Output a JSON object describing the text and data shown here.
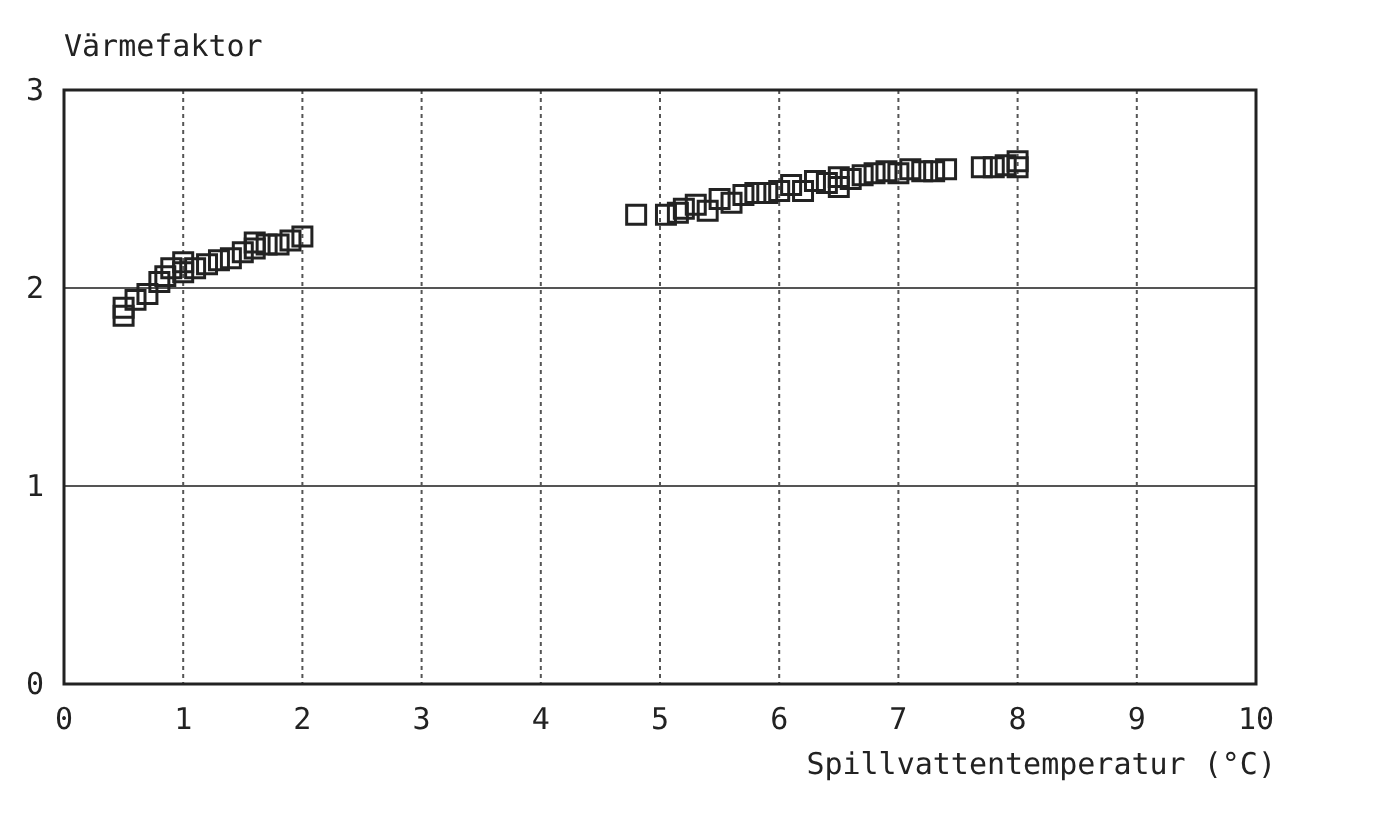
{
  "chart_data": {
    "type": "scatter",
    "ylabel": "Värmefaktor",
    "xlabel": "Spillvattentemperatur (°C)",
    "xlim": [
      0,
      10
    ],
    "xticks": [
      0,
      1,
      2,
      3,
      4,
      5,
      6,
      7,
      8,
      9,
      10
    ],
    "ylim": [
      0,
      3
    ],
    "yticks": [
      0,
      1,
      2,
      3
    ],
    "grid": true,
    "marker": "square",
    "series": [
      {
        "color": "#222222",
        "x": [
          0.5,
          0.5,
          0.6,
          0.7,
          0.8,
          0.85,
          0.9,
          1.0,
          1.0,
          1.1,
          1.2,
          1.3,
          1.4,
          1.5,
          1.6,
          1.6,
          1.7,
          1.8,
          1.9,
          2.0,
          4.8,
          5.05,
          5.15,
          5.2,
          5.3,
          5.4,
          5.5,
          5.6,
          5.7,
          5.8,
          5.9,
          6.0,
          6.1,
          6.2,
          6.3,
          6.4,
          6.5,
          6.5,
          6.6,
          6.7,
          6.8,
          6.9,
          7.0,
          7.1,
          7.2,
          7.3,
          7.4,
          7.7,
          7.8,
          7.9,
          8.0,
          8.0
        ],
        "values": [
          1.86,
          1.9,
          1.94,
          1.97,
          2.03,
          2.06,
          2.1,
          2.08,
          2.13,
          2.1,
          2.12,
          2.14,
          2.15,
          2.18,
          2.2,
          2.23,
          2.22,
          2.22,
          2.24,
          2.26,
          2.37,
          2.37,
          2.38,
          2.4,
          2.42,
          2.39,
          2.45,
          2.43,
          2.47,
          2.48,
          2.48,
          2.49,
          2.52,
          2.49,
          2.54,
          2.53,
          2.56,
          2.51,
          2.55,
          2.57,
          2.58,
          2.59,
          2.58,
          2.6,
          2.59,
          2.59,
          2.6,
          2.61,
          2.61,
          2.62,
          2.64,
          2.61
        ]
      }
    ]
  }
}
